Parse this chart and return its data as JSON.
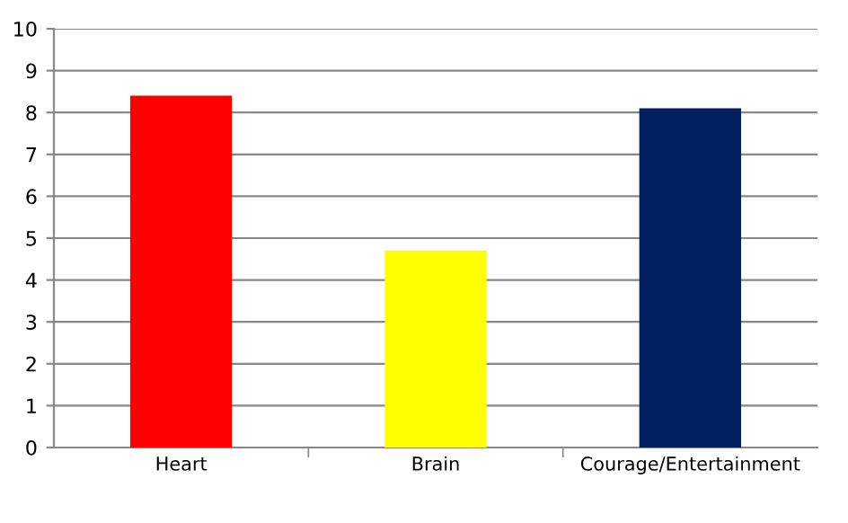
{
  "chart_data": {
    "type": "bar",
    "categories": [
      "Heart",
      "Brain",
      "Courage/Entertainment"
    ],
    "values": [
      8.4,
      4.7,
      8.1
    ],
    "colors": [
      "#ff0000",
      "#ffff00",
      "#002060"
    ],
    "ylim": [
      0,
      10
    ],
    "yticks": [
      0,
      1,
      2,
      3,
      4,
      5,
      6,
      7,
      8,
      9,
      10
    ],
    "grid": "y"
  }
}
